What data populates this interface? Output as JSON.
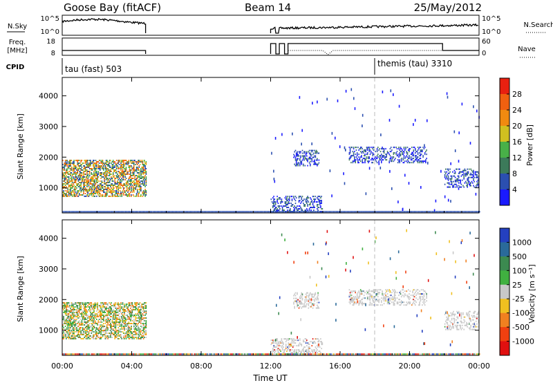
{
  "header": {
    "site": "Goose Bay (fitACF)",
    "beam": "Beam 14",
    "date": "25/May/2012"
  },
  "top_panels": {
    "nsky_label": "N.Sky",
    "nsky_ticks": [
      "10^5",
      "10^0"
    ],
    "nsearch_label": "N.Search",
    "nsearch_ticks": [
      "10^5",
      "10^0"
    ],
    "freq_label_1": "Freq.",
    "freq_label_2": "[MHz]",
    "freq_ticks": [
      "18",
      "8"
    ],
    "nave_label": "Nave",
    "nave_ticks": [
      "60",
      "0"
    ],
    "cpid_label": "CPID",
    "cpid_segments": [
      {
        "label": "tau (fast) 503",
        "start_hour": 0.0
      },
      {
        "label": "themis (tau) 3310",
        "start_hour": 18.0
      }
    ]
  },
  "chart_data": [
    {
      "type": "heatmap",
      "name": "Power",
      "xlabel": "",
      "ylabel": "Slant Range [km]",
      "xlim": [
        0,
        24
      ],
      "ylim": [
        180,
        4600
      ],
      "yticks": [
        "1000",
        "2000",
        "3000",
        "4000"
      ],
      "colorbar_label": "Power [dB]",
      "colorbar_ticks": [
        "4",
        "8",
        "12",
        "16",
        "20",
        "24",
        "28"
      ],
      "colorbar_colors": [
        "#1a1aff",
        "#2b4fb0",
        "#3c7a5a",
        "#48b048",
        "#d0c020",
        "#f08a10",
        "#f06010",
        "#e82010"
      ],
      "data_regions": [
        {
          "hours": [
            0.0,
            4.8
          ],
          "range_km": [
            700,
            1900
          ],
          "typical": "8-20 dB"
        },
        {
          "hours": [
            12.0,
            15.0
          ],
          "range_km": [
            200,
            700
          ],
          "typical": "4-8 dB"
        },
        {
          "hours": [
            13.3,
            14.8
          ],
          "range_km": [
            1700,
            2200
          ],
          "typical": "4-8 dB"
        },
        {
          "hours": [
            16.5,
            21.0
          ],
          "range_km": [
            1800,
            2300
          ],
          "typical": "4-8 dB"
        },
        {
          "hours": [
            22.0,
            24.0
          ],
          "range_km": [
            1000,
            1600
          ],
          "typical": "4-16 dB"
        }
      ]
    },
    {
      "type": "heatmap",
      "name": "Velocity",
      "xlabel": "Time UT",
      "ylabel": "Slant Range [km]",
      "xlim": [
        0,
        24
      ],
      "ylim": [
        180,
        4600
      ],
      "xticks": [
        "00:00",
        "04:00",
        "08:00",
        "12:00",
        "16:00",
        "20:00",
        "00:00"
      ],
      "yticks": [
        "1000",
        "2000",
        "3000",
        "4000"
      ],
      "colorbar_label": "Velocity [m s⁻¹]",
      "colorbar_ticks": [
        "1000",
        "500",
        "100",
        "25",
        "-25",
        "-100",
        "-500",
        "-1000"
      ],
      "colorbar_colors": [
        "#2440c0",
        "#2a6a9a",
        "#3c8a50",
        "#40b040",
        "#c8c8c8",
        "#f0c020",
        "#f08020",
        "#f04010",
        "#e01010"
      ],
      "data_regions": [
        {
          "hours": [
            0.0,
            4.8
          ],
          "range_km": [
            700,
            1900
          ],
          "typical": "-100 to 100 m/s"
        },
        {
          "hours": [
            12.0,
            15.0
          ],
          "range_km": [
            200,
            700
          ],
          "typical": "mixed"
        },
        {
          "hours": [
            13.3,
            14.8
          ],
          "range_km": [
            1700,
            2200
          ],
          "typical": "-25 to 25 m/s"
        },
        {
          "hours": [
            16.5,
            21.0
          ],
          "range_km": [
            1800,
            2300
          ],
          "typical": "-25 to 25 m/s"
        },
        {
          "hours": [
            22.0,
            24.0
          ],
          "range_km": [
            1000,
            1600
          ],
          "typical": "-25 to 25 m/s"
        }
      ]
    }
  ]
}
